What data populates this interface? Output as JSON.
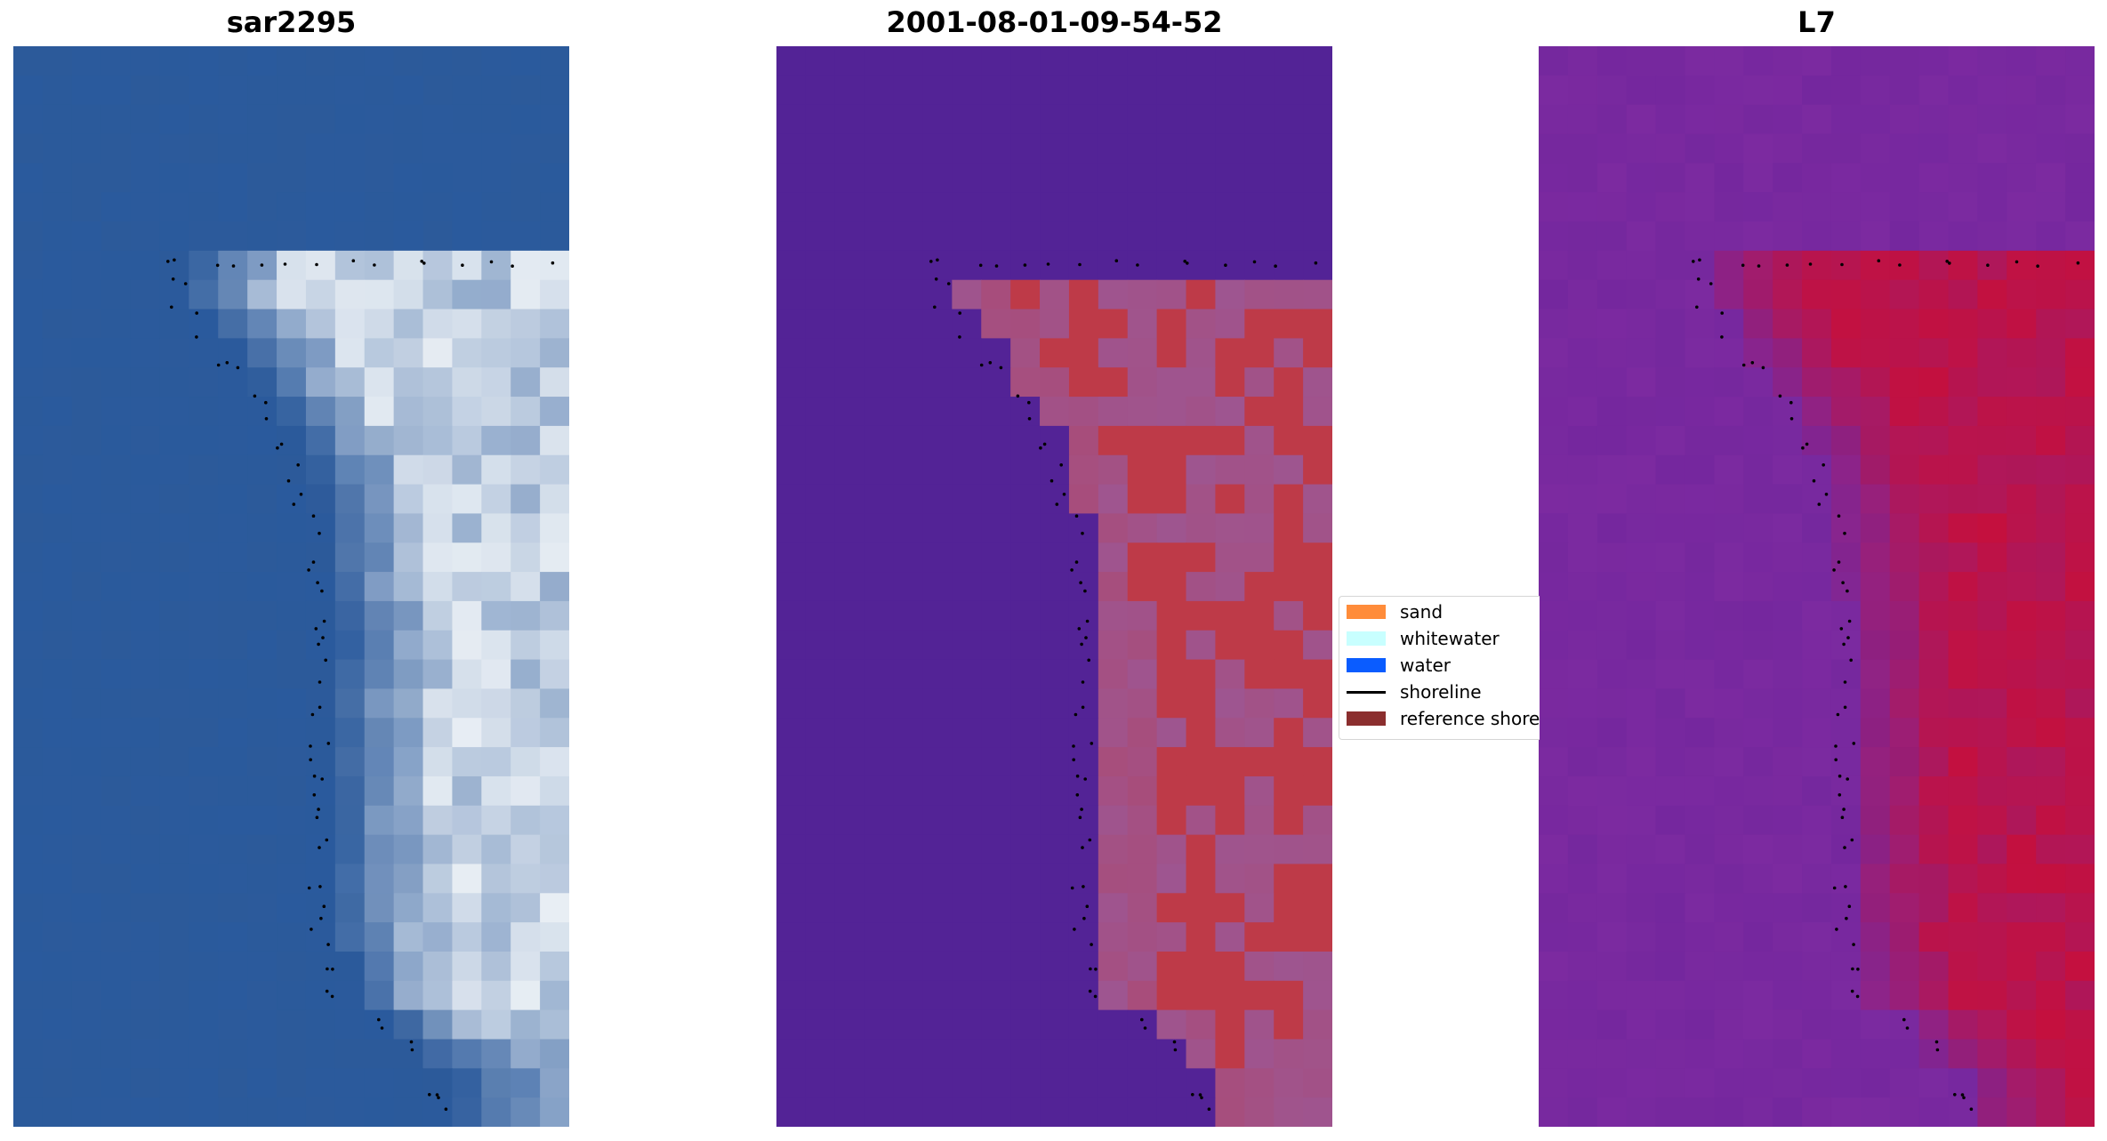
{
  "panels": [
    {
      "title": "sar2295"
    },
    {
      "title": "2001-08-01-09-54-52"
    },
    {
      "title": "L7"
    }
  ],
  "legend": {
    "items": [
      {
        "label": "sand",
        "color": "#ff8c3a",
        "kind": "patch"
      },
      {
        "label": "whitewater",
        "color": "#c8ffff",
        "kind": "patch"
      },
      {
        "label": "water",
        "color": "#0a5cff",
        "kind": "patch"
      },
      {
        "label": "shoreline",
        "color": "#000000",
        "kind": "line"
      },
      {
        "label": "reference shoreline",
        "color": "#8b2e2e",
        "kind": "patch"
      }
    ]
  },
  "colors": {
    "rgb_water": "#2c5a9a",
    "rgb_whitewater": "#e8eef4",
    "classified_background": "#532396",
    "classified_sand": "#be3a48",
    "classified_mixed": "#9e5590",
    "index_water": "#7c2aa0",
    "index_land": "#c4103e"
  }
}
